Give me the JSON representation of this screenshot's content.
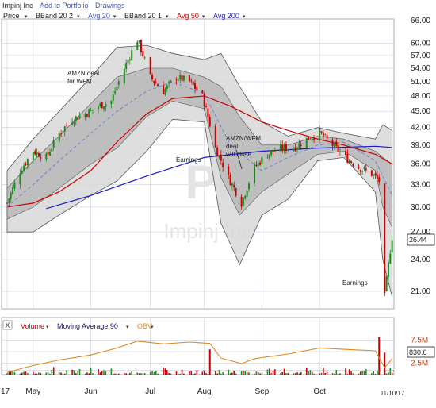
{
  "header": {
    "company": "Impinj Inc",
    "add_to_portfolio": "Add to Portfolio",
    "drawings": "Drawings"
  },
  "legend": [
    {
      "label": "Price",
      "color": "#222222"
    },
    {
      "label": "BBand 20 2",
      "color": "#222222"
    },
    {
      "label": "Avg 20",
      "color": "#4a5fc1"
    },
    {
      "label": "BBand 20 1",
      "color": "#222222"
    },
    {
      "label": "Avg 50",
      "color": "#cc0000"
    },
    {
      "label": "Avg 200",
      "color": "#1a1acc"
    }
  ],
  "watermark": {
    "symbol": "PI",
    "name": "Impinj Inc"
  },
  "annotations": {
    "amzn_wfm": [
      "AMZN deal",
      "for WFM"
    ],
    "earnings_aug": "Earnings",
    "amzn_wfm_close": [
      "AMZN/WFM",
      "deal",
      "will close"
    ],
    "earnings_nov": "Earnings"
  },
  "last_price_label": "26.44",
  "volume_panel": {
    "close_box": "X",
    "legend": [
      {
        "label": "Volume",
        "color": "#cc0000"
      },
      {
        "label": "Moving Average 90",
        "color": "#1a1a66"
      },
      {
        "label": "OBV",
        "color": "#e08a1e"
      }
    ],
    "last_value_label": "830.6"
  },
  "colors": {
    "up": "#1d8a1d",
    "down": "#cc0000",
    "band_outer": "#d8d8d8",
    "band_inner": "#b9b9b9",
    "grid": "#c8d0dc"
  },
  "chart_data": {
    "type": "line",
    "title": "Impinj Inc (PI)",
    "xlabel": "",
    "ylabel": "",
    "yscale": "log",
    "ylim": [
      19.5,
      66.5
    ],
    "y_ticks": [
      66,
      60,
      57,
      54,
      51,
      48,
      45,
      42,
      39,
      36,
      33,
      30,
      27,
      24,
      21
    ],
    "y_tick_labels": [
      "66.00",
      "60.00",
      "57.00",
      "54.00",
      "51.00",
      "48.00",
      "45.00",
      "42.00",
      "39.00",
      "36.00",
      "33.00",
      "30.00",
      "27.00",
      "24.00",
      "21.00"
    ],
    "x_ticks": [
      {
        "label": "17",
        "date": "2017-04-17"
      },
      {
        "label": "May",
        "date": "2017-05-01"
      },
      {
        "label": "Jun",
        "date": "2017-06-01"
      },
      {
        "label": "Jul",
        "date": "2017-07-03"
      },
      {
        "label": "Aug",
        "date": "2017-08-01"
      },
      {
        "label": "Sep",
        "date": "2017-09-01"
      },
      {
        "label": "Oct",
        "date": "2017-10-02"
      },
      {
        "label": "11/10/17",
        "date": "2017-11-10"
      }
    ],
    "price_points": [
      [
        "2017-04-17",
        30.5
      ],
      [
        "2017-04-24",
        35.0
      ],
      [
        "2017-05-01",
        38.0
      ],
      [
        "2017-05-08",
        37.0
      ],
      [
        "2017-05-15",
        41.0
      ],
      [
        "2017-05-22",
        43.5
      ],
      [
        "2017-05-29",
        44.5
      ],
      [
        "2017-06-05",
        46.0
      ],
      [
        "2017-06-12",
        47.0
      ],
      [
        "2017-06-19",
        54.0
      ],
      [
        "2017-06-26",
        61.0
      ],
      [
        "2017-07-03",
        52.0
      ],
      [
        "2017-07-10",
        49.0
      ],
      [
        "2017-07-17",
        52.0
      ],
      [
        "2017-07-24",
        51.0
      ],
      [
        "2017-07-31",
        48.0
      ],
      [
        "2017-08-07",
        38.5
      ],
      [
        "2017-08-14",
        34.0
      ],
      [
        "2017-08-21",
        30.5
      ],
      [
        "2017-08-28",
        35.5
      ],
      [
        "2017-09-04",
        37.5
      ],
      [
        "2017-09-11",
        38.5
      ],
      [
        "2017-09-18",
        38.5
      ],
      [
        "2017-09-25",
        40.0
      ],
      [
        "2017-10-02",
        41.0
      ],
      [
        "2017-10-09",
        39.0
      ],
      [
        "2017-10-16",
        37.0
      ],
      [
        "2017-10-23",
        35.5
      ],
      [
        "2017-10-30",
        34.5
      ],
      [
        "2017-11-03",
        33.5
      ],
      [
        "2017-11-06",
        20.5
      ],
      [
        "2017-11-08",
        23.5
      ],
      [
        "2017-11-10",
        26.44
      ]
    ],
    "series": [
      {
        "name": "Avg 50",
        "values": [
          [
            "2017-04-17",
            30.0
          ],
          [
            "2017-05-01",
            30.5
          ],
          [
            "2017-05-15",
            32.0
          ],
          [
            "2017-06-01",
            35.0
          ],
          [
            "2017-06-15",
            39.5
          ],
          [
            "2017-07-01",
            44.5
          ],
          [
            "2017-07-15",
            47.5
          ],
          [
            "2017-08-01",
            48.0
          ],
          [
            "2017-08-15",
            46.0
          ],
          [
            "2017-09-01",
            43.0
          ],
          [
            "2017-09-15",
            41.5
          ],
          [
            "2017-10-01",
            40.0
          ],
          [
            "2017-10-15",
            39.0
          ],
          [
            "2017-11-01",
            37.5
          ],
          [
            "2017-11-10",
            36.0
          ]
        ]
      },
      {
        "name": "Avg 200",
        "values": [
          [
            "2017-05-08",
            29.8
          ],
          [
            "2017-06-01",
            31.5
          ],
          [
            "2017-07-01",
            34.2
          ],
          [
            "2017-08-01",
            37.0
          ],
          [
            "2017-09-01",
            38.0
          ],
          [
            "2017-10-01",
            38.5
          ],
          [
            "2017-11-01",
            38.8
          ],
          [
            "2017-11-10",
            38.6
          ]
        ]
      },
      {
        "name": "Avg 20",
        "values": [
          [
            "2017-04-17",
            30.0
          ],
          [
            "2017-05-01",
            33.0
          ],
          [
            "2017-05-15",
            36.5
          ],
          [
            "2017-06-01",
            41.0
          ],
          [
            "2017-06-15",
            45.0
          ],
          [
            "2017-07-01",
            49.0
          ],
          [
            "2017-07-15",
            51.0
          ],
          [
            "2017-08-01",
            48.5
          ],
          [
            "2017-08-15",
            39.0
          ],
          [
            "2017-09-01",
            35.0
          ],
          [
            "2017-09-15",
            37.0
          ],
          [
            "2017-10-01",
            39.0
          ],
          [
            "2017-10-15",
            39.5
          ],
          [
            "2017-11-01",
            36.5
          ],
          [
            "2017-11-10",
            31.5
          ]
        ]
      }
    ],
    "bbands_2sd": {
      "upper": [
        [
          "2017-04-17",
          35.0
        ],
        [
          "2017-05-01",
          40.0
        ],
        [
          "2017-05-15",
          45.0
        ],
        [
          "2017-06-01",
          52.0
        ],
        [
          "2017-06-15",
          59.0
        ],
        [
          "2017-07-01",
          59.5
        ],
        [
          "2017-07-15",
          57.5
        ],
        [
          "2017-08-01",
          56.0
        ],
        [
          "2017-08-10",
          57.5
        ],
        [
          "2017-08-20",
          50.0
        ],
        [
          "2017-09-01",
          43.0
        ],
        [
          "2017-09-15",
          40.5
        ],
        [
          "2017-10-01",
          42.0
        ],
        [
          "2017-10-15",
          41.0
        ],
        [
          "2017-11-01",
          40.0
        ],
        [
          "2017-11-05",
          42.5
        ],
        [
          "2017-11-10",
          41.5
        ]
      ],
      "lower": [
        [
          "2017-04-17",
          27.0
        ],
        [
          "2017-05-01",
          27.0
        ],
        [
          "2017-05-15",
          29.0
        ],
        [
          "2017-06-01",
          31.5
        ],
        [
          "2017-06-15",
          33.5
        ],
        [
          "2017-07-01",
          38.0
        ],
        [
          "2017-07-15",
          43.5
        ],
        [
          "2017-08-01",
          43.0
        ],
        [
          "2017-08-10",
          28.0
        ],
        [
          "2017-08-20",
          23.5
        ],
        [
          "2017-09-01",
          29.0
        ],
        [
          "2017-09-15",
          31.0
        ],
        [
          "2017-10-01",
          36.5
        ],
        [
          "2017-10-15",
          37.0
        ],
        [
          "2017-11-01",
          32.0
        ],
        [
          "2017-11-05",
          24.0
        ],
        [
          "2017-11-10",
          20.5
        ]
      ]
    },
    "bbands_1sd": {
      "upper": [
        [
          "2017-04-17",
          32.5
        ],
        [
          "2017-05-01",
          36.5
        ],
        [
          "2017-05-15",
          40.5
        ],
        [
          "2017-06-01",
          46.5
        ],
        [
          "2017-06-15",
          52.0
        ],
        [
          "2017-07-01",
          54.0
        ],
        [
          "2017-07-15",
          54.0
        ],
        [
          "2017-08-01",
          52.0
        ],
        [
          "2017-08-10",
          50.0
        ],
        [
          "2017-08-20",
          44.0
        ],
        [
          "2017-09-01",
          39.0
        ],
        [
          "2017-09-15",
          39.0
        ],
        [
          "2017-10-01",
          40.5
        ],
        [
          "2017-10-15",
          40.0
        ],
        [
          "2017-11-01",
          38.0
        ],
        [
          "2017-11-05",
          37.0
        ],
        [
          "2017-11-10",
          36.0
        ]
      ],
      "lower": [
        [
          "2017-04-17",
          28.5
        ],
        [
          "2017-05-01",
          30.0
        ],
        [
          "2017-05-15",
          32.5
        ],
        [
          "2017-06-01",
          36.0
        ],
        [
          "2017-06-15",
          38.5
        ],
        [
          "2017-07-01",
          44.0
        ],
        [
          "2017-07-15",
          47.0
        ],
        [
          "2017-08-01",
          45.5
        ],
        [
          "2017-08-10",
          34.0
        ],
        [
          "2017-08-20",
          29.0
        ],
        [
          "2017-09-01",
          32.0
        ],
        [
          "2017-09-15",
          34.5
        ],
        [
          "2017-10-01",
          37.5
        ],
        [
          "2017-10-15",
          38.0
        ],
        [
          "2017-11-01",
          35.0
        ],
        [
          "2017-11-05",
          30.0
        ],
        [
          "2017-11-10",
          27.5
        ]
      ]
    },
    "volume_y_ticks": [
      7.5,
      5.0,
      2.5
    ],
    "volume_y_tick_labels": [
      "7.5M",
      "5.0M",
      "2.5M"
    ],
    "obv": [
      [
        "2017-04-17",
        0.5
      ],
      [
        "2017-05-01",
        2.0
      ],
      [
        "2017-05-15",
        3.2
      ],
      [
        "2017-06-01",
        4.3
      ],
      [
        "2017-06-15",
        5.8
      ],
      [
        "2017-06-26",
        7.3
      ],
      [
        "2017-07-10",
        6.7
      ],
      [
        "2017-07-24",
        7.1
      ],
      [
        "2017-08-04",
        6.8
      ],
      [
        "2017-08-10",
        3.6
      ],
      [
        "2017-08-21",
        2.4
      ],
      [
        "2017-08-28",
        3.5
      ],
      [
        "2017-09-15",
        4.5
      ],
      [
        "2017-10-02",
        5.8
      ],
      [
        "2017-10-16",
        5.5
      ],
      [
        "2017-11-01",
        5.2
      ],
      [
        "2017-11-06",
        1.5
      ],
      [
        "2017-11-10",
        3.5
      ]
    ],
    "volume_spikes": [
      [
        "2017-08-04",
        5.5
      ],
      [
        "2017-11-03",
        8.2
      ],
      [
        "2017-11-06",
        4.8
      ]
    ],
    "volume_ma90": 0.8
  }
}
